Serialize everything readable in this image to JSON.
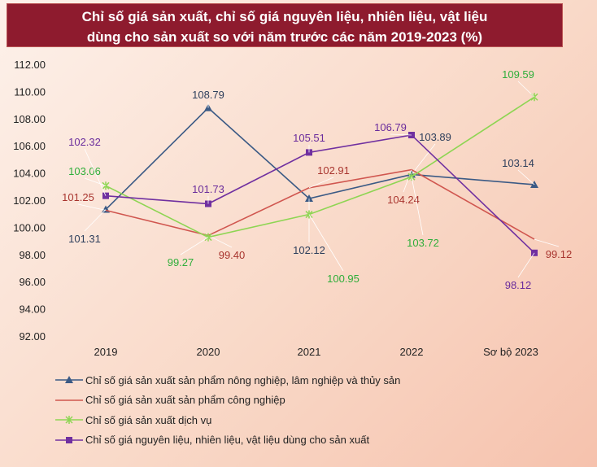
{
  "title_lines": [
    "Chỉ số giá sản xuất, chỉ số giá nguyên liệu, nhiên liệu, vật liệu",
    "dùng cho sản xuất so với năm trước các năm 2019-2023 (%)"
  ],
  "chart_data": {
    "type": "line",
    "title": "Chỉ số giá sản xuất, chỉ số giá nguyên liệu, nhiên liệu, vật liệu dùng cho sản xuất so với năm trước các năm 2019-2023 (%)",
    "categories": [
      "2019",
      "2020",
      "2021",
      "2022",
      "Sơ bộ 2023"
    ],
    "ylim": [
      92,
      112
    ],
    "yticks": [
      "92.00",
      "94.00",
      "96.00",
      "98.00",
      "100.00",
      "102.00",
      "104.00",
      "106.00",
      "108.00",
      "110.00",
      "112.00"
    ],
    "grid": false,
    "legend_placement": "bottom",
    "series": [
      {
        "name": "Chỉ số giá sản xuất sản phẩm nông nghiệp, lâm nghiệp và thủy sản",
        "values": [
          101.31,
          108.79,
          102.12,
          103.89,
          103.14
        ],
        "labels": [
          "101.31",
          "108.79",
          "102.12",
          "103.89",
          "103.14"
        ],
        "color": "#3b5a85",
        "label_color": "#2e3f5c",
        "marker": "triangle"
      },
      {
        "name": "Chỉ số giá sản xuất sản phẩm công nghiệp",
        "values": [
          101.25,
          99.4,
          102.91,
          104.24,
          99.12
        ],
        "labels": [
          "101.25",
          "99.40",
          "102.91",
          "104.24",
          "99.12"
        ],
        "color": "#d0564f",
        "label_color": "#a8342e",
        "marker": "none"
      },
      {
        "name": "Chỉ số giá sản xuất dịch vụ",
        "values": [
          103.06,
          99.27,
          100.95,
          103.72,
          109.59
        ],
        "labels": [
          "103.06",
          "99.27",
          "100.95",
          "103.72",
          "109.59"
        ],
        "color": "#8ed553",
        "label_color": "#2fae3a",
        "marker": "x"
      },
      {
        "name": "Chỉ số giá nguyên liệu, nhiên liệu, vật liệu dùng cho sản xuất",
        "values": [
          102.32,
          101.73,
          105.51,
          106.79,
          98.12
        ],
        "labels": [
          "102.32",
          "101.73",
          "105.51",
          "106.79",
          "98.12"
        ],
        "color": "#7030a0",
        "label_color": "#6a2c9c",
        "marker": "square"
      }
    ]
  }
}
